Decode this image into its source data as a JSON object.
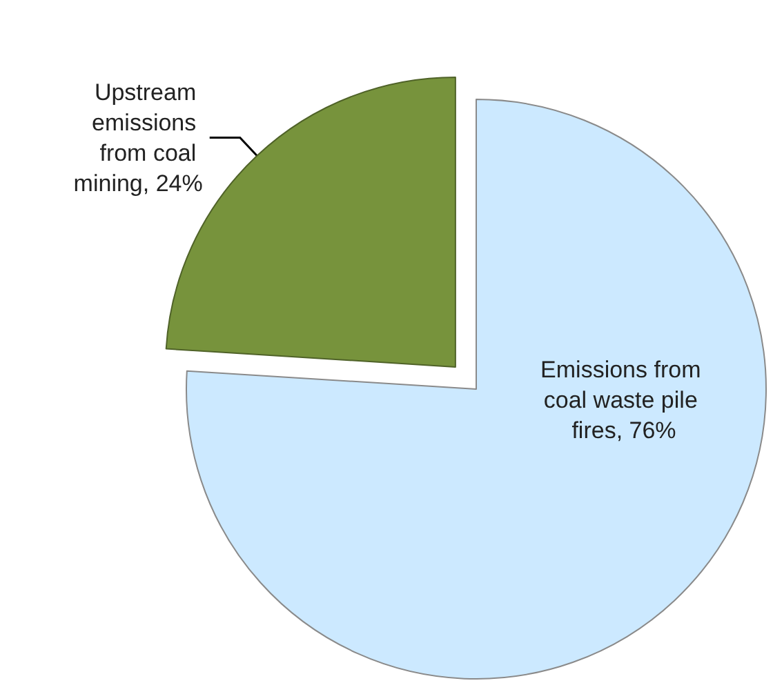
{
  "chart_data": {
    "type": "pie",
    "categories": [
      "Upstream emissions from coal mining",
      "Emissions from coal waste pile fires"
    ],
    "values": [
      24,
      76
    ],
    "colors": [
      "#77933c",
      "#cce9ff"
    ],
    "value_labels": [
      "24%",
      "76%"
    ]
  }
}
